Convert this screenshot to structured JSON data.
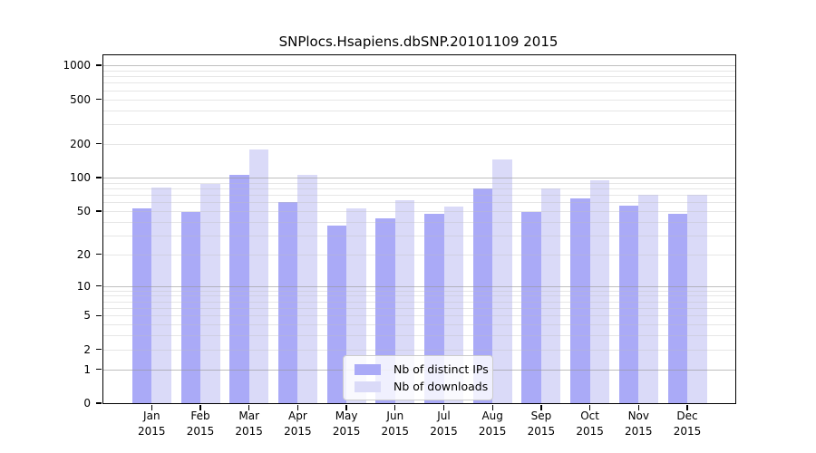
{
  "title": "SNPlocs.Hsapiens.dbSNP.20101109 2015",
  "colors": {
    "ips": "#aaaaf7",
    "downloads": "#dadaf8",
    "frame": "#000000",
    "major_grid": "#b5b5b5",
    "minor_grid": "#e8e8e8",
    "legend_border": "#cccccc"
  },
  "legend": {
    "items": [
      {
        "key": "ips",
        "label": "Nb of distinct IPs"
      },
      {
        "key": "downloads",
        "label": "Nb of downloads"
      }
    ]
  },
  "chart_data": {
    "type": "bar",
    "title": "SNPlocs.Hsapiens.dbSNP.20101109 2015",
    "categories": [
      "Jan",
      "Feb",
      "Mar",
      "Apr",
      "May",
      "Jun",
      "Jul",
      "Aug",
      "Sep",
      "Oct",
      "Nov",
      "Dec"
    ],
    "x_year_label": "2015",
    "series": [
      {
        "name": "Nb of distinct IPs",
        "values": [
          53,
          49,
          105,
          60,
          37,
          43,
          47,
          80,
          49,
          65,
          56,
          47
        ]
      },
      {
        "name": "Nb of downloads",
        "values": [
          82,
          87,
          178,
          105,
          53,
          63,
          55,
          145,
          80,
          95,
          70,
          70
        ]
      }
    ],
    "xlabel": "",
    "ylabel": "",
    "y_scale": "log10(1+x)",
    "y_top_value": 1230,
    "y_tick_values": [
      0,
      1,
      2,
      5,
      10,
      20,
      50,
      100,
      200,
      500,
      1000
    ],
    "y_tick_labels": [
      "0",
      "1",
      "2",
      "5",
      "10",
      "20",
      "50",
      "100",
      "200",
      "500",
      "1000"
    ],
    "y_major_gridlines": [
      1,
      10,
      100,
      1000
    ],
    "y_minor_gridlines": [
      2,
      3,
      4,
      5,
      6,
      7,
      8,
      9,
      20,
      30,
      40,
      50,
      60,
      70,
      80,
      90,
      200,
      300,
      400,
      500,
      600,
      700,
      800,
      900
    ],
    "grid": true,
    "legend_position": "lower center"
  }
}
